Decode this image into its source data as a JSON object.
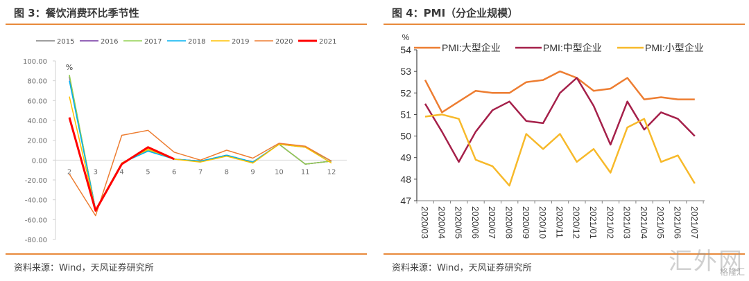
{
  "watermark": {
    "main": "汇外网",
    "sub": "格隆汇"
  },
  "chart_data": [
    {
      "type": "line",
      "title": "图 3：餐饮消费环比季节性",
      "source": "资料来源：Wind，天风证券研究所",
      "ylabel": "%",
      "xlabel": "",
      "x": [
        2,
        3,
        4,
        5,
        6,
        7,
        8,
        9,
        10,
        11,
        12
      ],
      "ylim": [
        -80,
        100
      ],
      "yticks": [
        "100.00",
        "80.00",
        "60.00",
        "40.00",
        "20.00",
        "0.00",
        "-20.00",
        "-40.00",
        "-60.00",
        "-80.00"
      ],
      "ytick_values": [
        100,
        80,
        60,
        40,
        20,
        0,
        -20,
        -40,
        -60,
        -80
      ],
      "legend_position": "top",
      "grid": false,
      "series": [
        {
          "name": "2015",
          "color": "#7f7f7f",
          "width": 1.5,
          "values": [
            85,
            -50,
            -3,
            10,
            1,
            -1,
            5,
            -2,
            16,
            -4,
            -1
          ]
        },
        {
          "name": "2016",
          "color": "#7030a0",
          "width": 1.5,
          "values": [
            84,
            -50,
            -3,
            10,
            1,
            -1,
            5,
            -2,
            16,
            -4,
            -1
          ]
        },
        {
          "name": "2017",
          "color": "#92d050",
          "width": 1.5,
          "values": [
            86,
            -50,
            -3,
            10,
            1,
            -1,
            5,
            -2,
            16,
            -4,
            -1
          ]
        },
        {
          "name": "2018",
          "color": "#00b0f0",
          "width": 1.5,
          "values": [
            80,
            -50,
            -3,
            9,
            1,
            -1,
            5,
            -2,
            16,
            13,
            -1
          ]
        },
        {
          "name": "2019",
          "color": "#ffc000",
          "width": 1.5,
          "values": [
            64,
            -50,
            -3,
            11,
            1,
            -2,
            4,
            -3,
            16,
            13,
            -3
          ]
        },
        {
          "name": "2020",
          "color": "#ed7d31",
          "width": 1.5,
          "values": [
            -14,
            -56,
            25,
            30,
            8,
            0,
            10,
            2,
            17,
            14,
            -1
          ]
        },
        {
          "name": "2021",
          "color": "#ff0000",
          "width": 3,
          "values": [
            43,
            -51,
            -4,
            13,
            1,
            null,
            null,
            null,
            null,
            null,
            null
          ]
        }
      ]
    },
    {
      "type": "line",
      "title": "图 4：PMI（分企业规模）",
      "source": "资料来源：Wind，天风证券研究所",
      "ylabel": "%",
      "xlabel": "",
      "x": [
        "2020/03",
        "2020/04",
        "2020/05",
        "2020/06",
        "2020/07",
        "2020/08",
        "2020/09",
        "2020/10",
        "2020/11",
        "2020/12",
        "2021/01",
        "2021/02",
        "2021/03",
        "2021/04",
        "2021/05",
        "2021/06",
        "2021/07"
      ],
      "ylim": [
        47,
        54
      ],
      "yticks": [
        "54",
        "53",
        "52",
        "51",
        "50",
        "49",
        "48",
        "47"
      ],
      "ytick_values": [
        54,
        53,
        52,
        51,
        50,
        49,
        48,
        47
      ],
      "legend_position": "top",
      "grid": false,
      "series": [
        {
          "name": "PMI:大型企业",
          "color": "#ed7d31",
          "values": [
            52.6,
            51.1,
            51.6,
            52.1,
            52.0,
            52.0,
            52.5,
            52.6,
            53.0,
            52.7,
            52.1,
            52.2,
            52.7,
            51.7,
            51.8,
            51.7,
            51.7
          ]
        },
        {
          "name": "PMI:中型企业",
          "color": "#a5204a",
          "values": [
            51.5,
            50.2,
            48.8,
            50.2,
            51.2,
            51.6,
            50.7,
            50.6,
            52.0,
            52.7,
            51.4,
            49.6,
            51.6,
            50.3,
            51.1,
            50.8,
            50.0
          ]
        },
        {
          "name": "PMI:小型企业",
          "color": "#f7b92a",
          "values": [
            50.9,
            51.0,
            50.8,
            48.9,
            48.6,
            47.7,
            50.1,
            49.4,
            50.1,
            48.8,
            49.4,
            48.3,
            50.4,
            50.8,
            48.8,
            49.1,
            47.8
          ]
        }
      ]
    }
  ]
}
